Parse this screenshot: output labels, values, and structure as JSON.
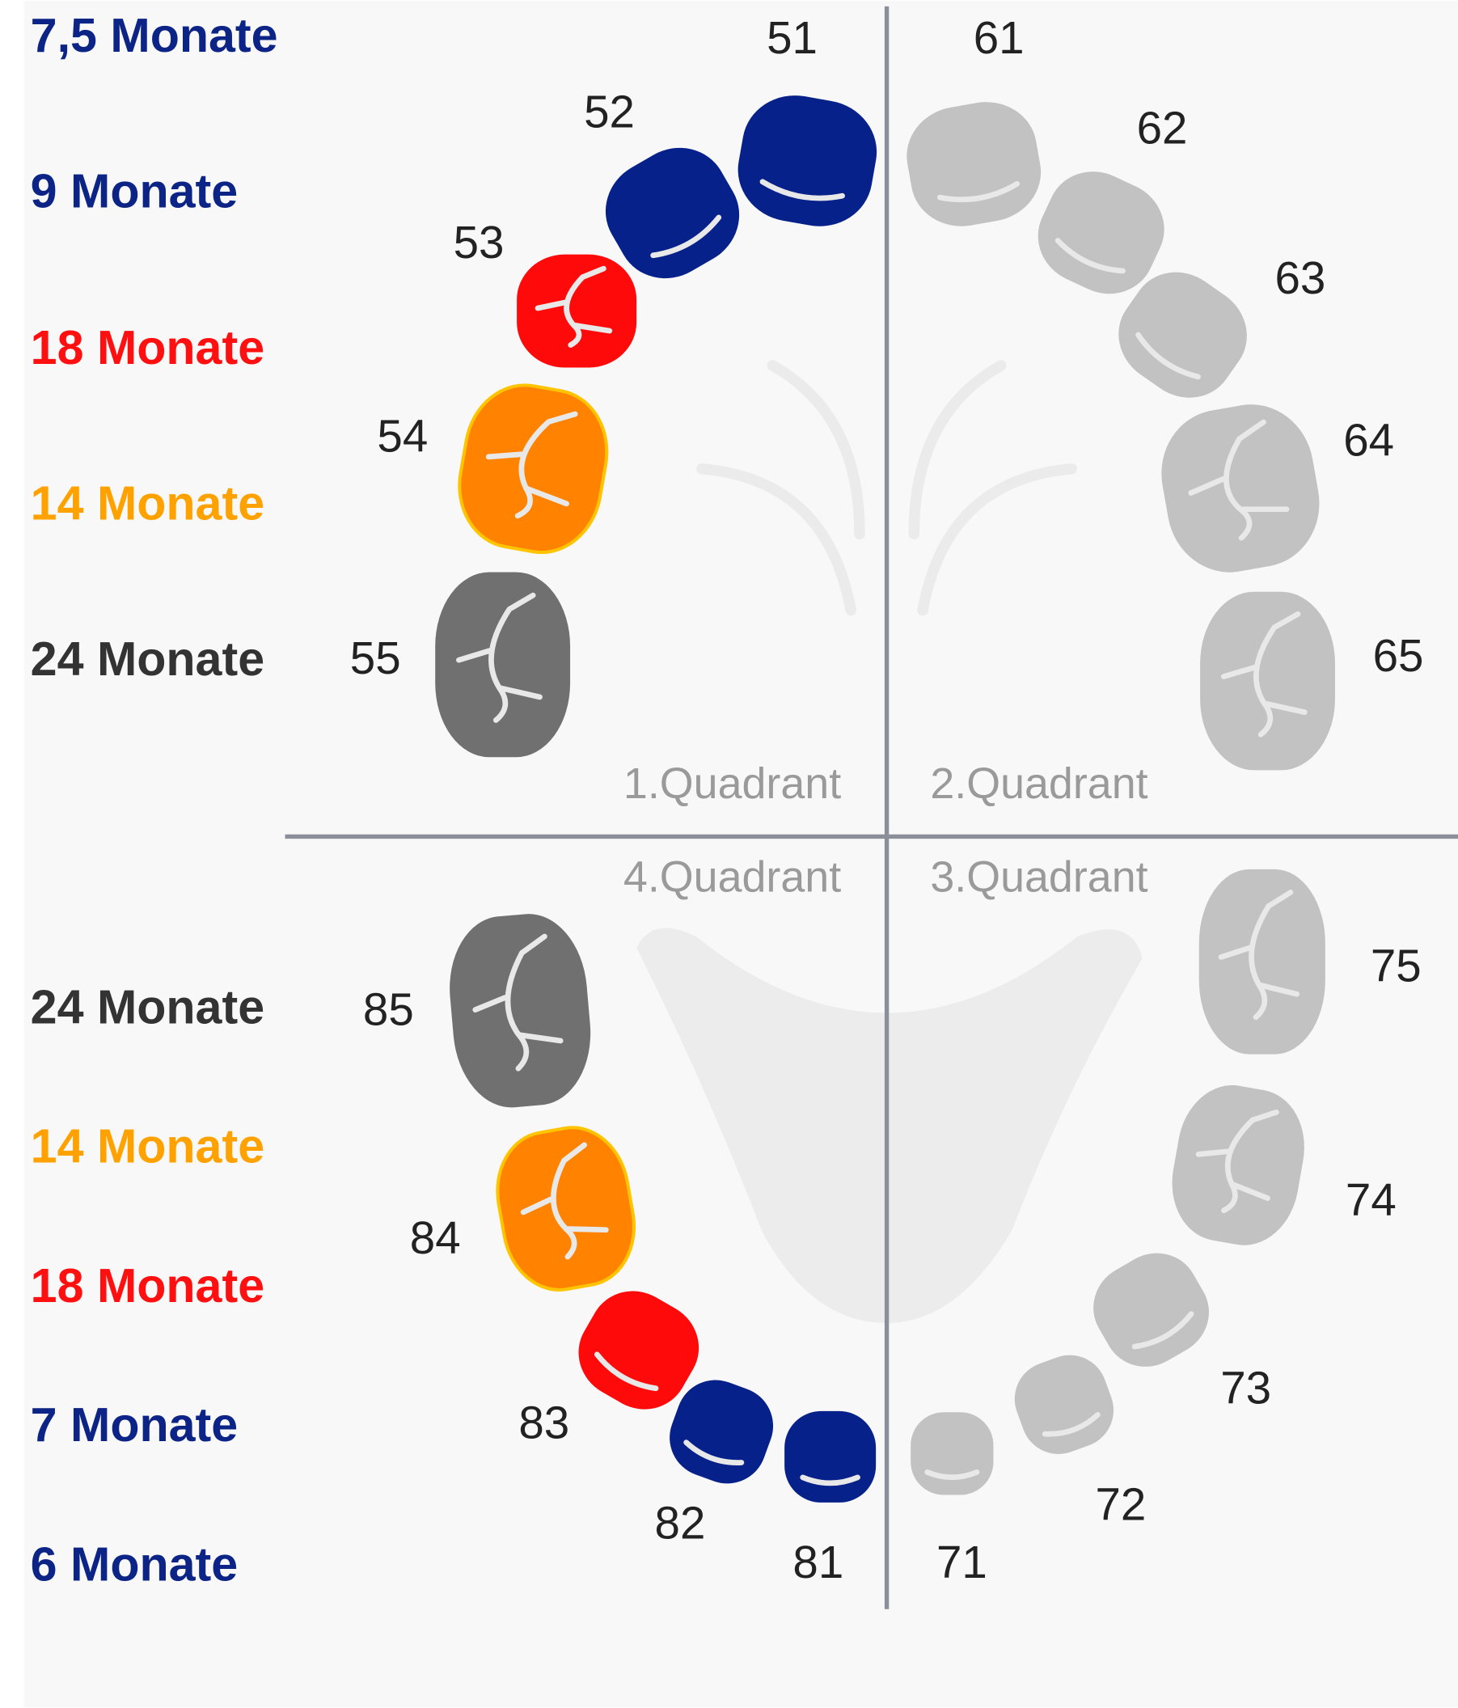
{
  "upper_ages": [
    "7,5 Monate",
    "9 Monate",
    "18 Monate",
    "14 Monate",
    "24 Monate"
  ],
  "lower_ages": [
    "24 Monate",
    "14 Monate",
    "18 Monate",
    "7 Monate",
    "6 Monate"
  ],
  "quadrants": [
    "1.Quadrant",
    "2.Quadrant",
    "3.Quadrant",
    "4.Quadrant"
  ],
  "teeth": [
    "51",
    "52",
    "53",
    "54",
    "55",
    "61",
    "62",
    "63",
    "64",
    "65",
    "71",
    "72",
    "73",
    "74",
    "75",
    "81",
    "82",
    "83",
    "84",
    "85"
  ]
}
